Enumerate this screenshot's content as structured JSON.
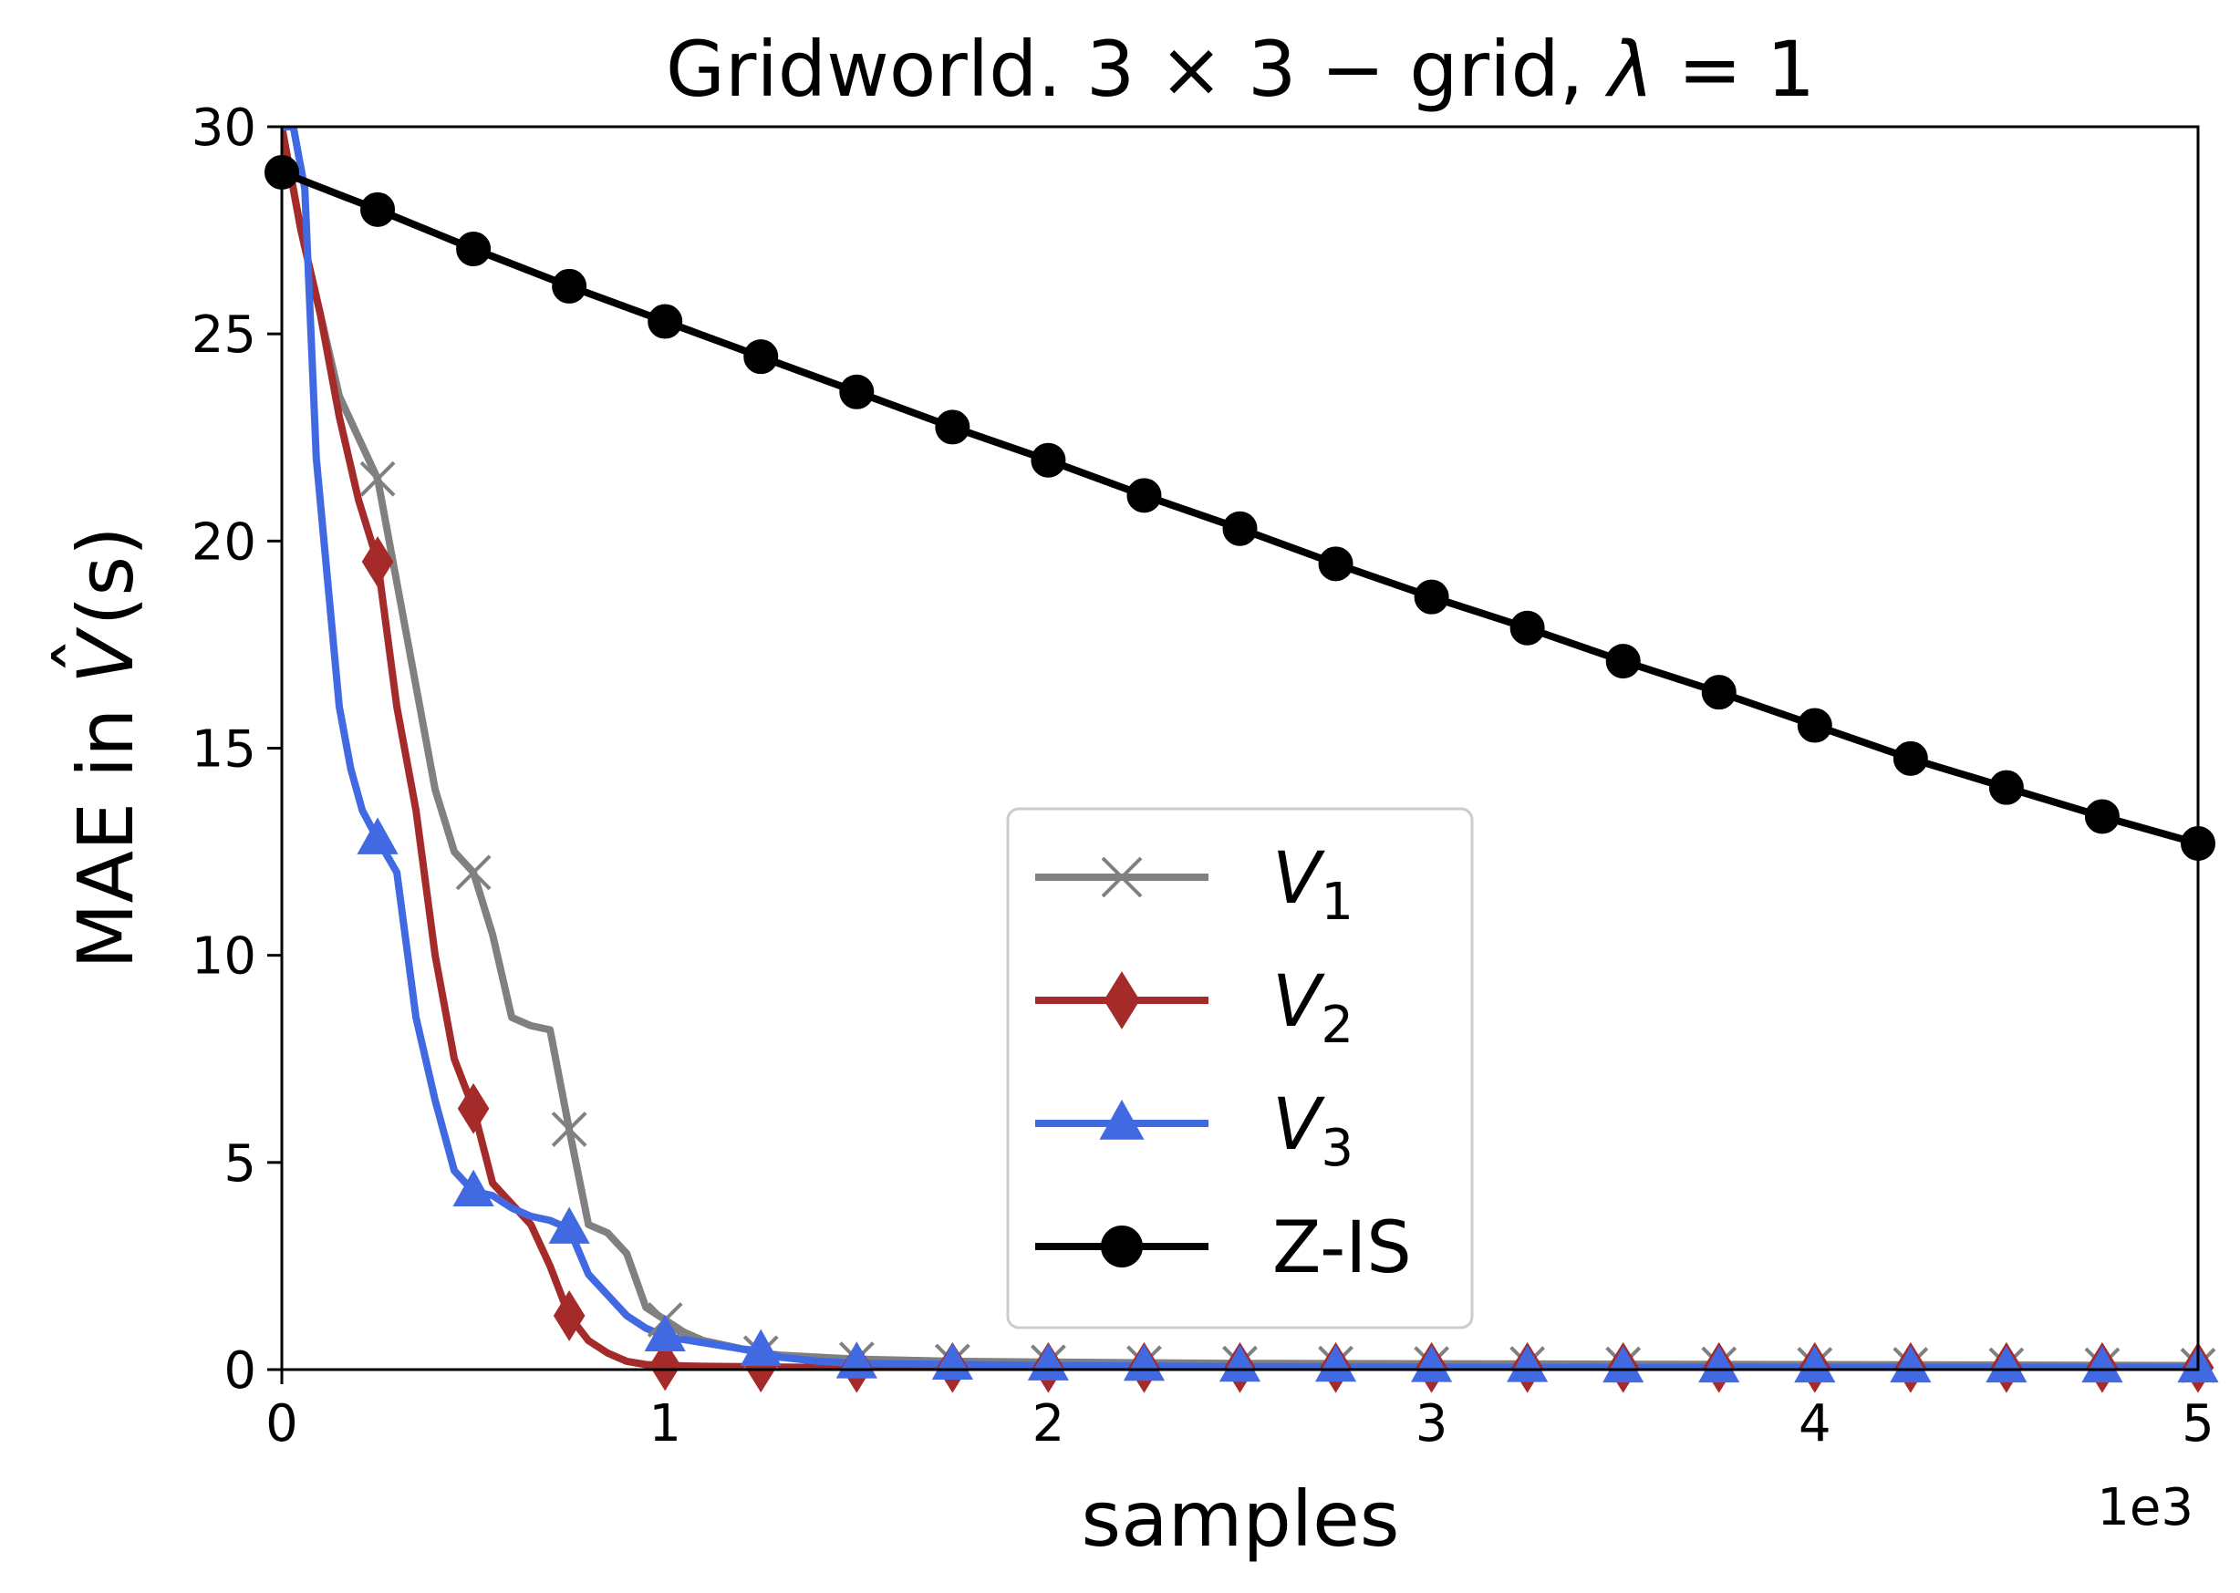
{
  "chart_data": {
    "type": "line",
    "title": "Gridworld. 3 × 3 −  grid, λ = 1",
    "title_parts": {
      "prefix": "Gridworld. 3 × 3 −  grid, ",
      "lambda": "λ",
      "suffix": " = 1"
    },
    "xlabel": "samples",
    "ylabel": "MAE in V̂(s)",
    "ylabel_parts": {
      "prefix": "MAE in ",
      "var": "V",
      "hat": "ˆ",
      "suffix": "(s)"
    },
    "x_multiplier_label": "1e3",
    "xlim": [
      0,
      5
    ],
    "ylim": [
      0,
      30
    ],
    "xticks": [
      0,
      1,
      2,
      3,
      4,
      5
    ],
    "xtick_labels": [
      "0",
      "1",
      "2",
      "3",
      "4",
      "5"
    ],
    "yticks": [
      0,
      5,
      10,
      15,
      20,
      25,
      30
    ],
    "ytick_labels": [
      "0",
      "5",
      "10",
      "15",
      "20",
      "25",
      "30"
    ],
    "grid": false,
    "legend_position": "lower-center",
    "series": [
      {
        "name": "V1",
        "label_main": "V",
        "label_sub": "1",
        "color": "#808080",
        "marker": "x",
        "x": [
          0,
          0.05,
          0.1,
          0.15,
          0.2,
          0.25,
          0.3,
          0.35,
          0.4,
          0.45,
          0.5,
          0.55,
          0.6,
          0.65,
          0.7,
          0.75,
          0.8,
          0.85,
          0.9,
          0.95,
          1.0,
          1.05,
          1.1,
          1.15,
          1.2,
          1.25,
          1.3,
          1.4,
          1.5,
          1.75,
          2.0,
          2.5,
          3.0,
          3.5,
          4.0,
          4.5,
          5.0
        ],
        "y": [
          30,
          27.5,
          25.5,
          23.5,
          22.5,
          21.5,
          19.0,
          16.5,
          14.0,
          12.5,
          12.0,
          10.5,
          8.5,
          8.3,
          8.2,
          5.8,
          3.5,
          3.3,
          2.8,
          1.5,
          1.2,
          0.9,
          0.7,
          0.6,
          0.5,
          0.4,
          0.35,
          0.3,
          0.25,
          0.2,
          0.18,
          0.15,
          0.14,
          0.13,
          0.12,
          0.11,
          0.1
        ],
        "marker_x": [
          0.25,
          0.5,
          0.75,
          1.0,
          1.25,
          1.5,
          1.75,
          2.0,
          2.25,
          2.5,
          2.75,
          3.0,
          3.25,
          3.5,
          3.75,
          4.0,
          4.25,
          4.5,
          4.75,
          5.0
        ],
        "marker_y": [
          21.5,
          12.0,
          5.8,
          1.2,
          0.4,
          0.25,
          0.2,
          0.18,
          0.16,
          0.15,
          0.15,
          0.14,
          0.14,
          0.13,
          0.13,
          0.12,
          0.12,
          0.11,
          0.11,
          0.1
        ]
      },
      {
        "name": "V2",
        "label_main": "V",
        "label_sub": "2",
        "color": "#a52a2a",
        "marker": "diamond",
        "x": [
          0,
          0.05,
          0.1,
          0.15,
          0.2,
          0.25,
          0.3,
          0.35,
          0.4,
          0.45,
          0.5,
          0.55,
          0.6,
          0.65,
          0.7,
          0.75,
          0.8,
          0.85,
          0.9,
          0.95,
          1.0,
          1.1,
          1.2,
          1.3,
          1.5,
          2.0,
          2.5,
          3.0,
          3.5,
          4.0,
          4.5,
          5.0
        ],
        "y": [
          30,
          27.5,
          25.5,
          23.0,
          21.0,
          19.5,
          16.0,
          13.5,
          10.0,
          7.5,
          6.3,
          4.5,
          4.0,
          3.5,
          2.5,
          1.3,
          0.7,
          0.4,
          0.2,
          0.12,
          0.1,
          0.08,
          0.07,
          0.06,
          0.05,
          0.05,
          0.05,
          0.05,
          0.05,
          0.05,
          0.05,
          0.05
        ],
        "marker_x": [
          0.25,
          0.5,
          0.75,
          1.0,
          1.25,
          1.5,
          1.75,
          2.0,
          2.25,
          2.5,
          2.75,
          3.0,
          3.25,
          3.5,
          3.75,
          4.0,
          4.25,
          4.5,
          4.75,
          5.0
        ],
        "marker_y": [
          19.5,
          6.3,
          1.3,
          0.1,
          0.06,
          0.05,
          0.05,
          0.05,
          0.05,
          0.05,
          0.05,
          0.05,
          0.05,
          0.05,
          0.05,
          0.05,
          0.05,
          0.05,
          0.05,
          0.05
        ]
      },
      {
        "name": "V3",
        "label_main": "V",
        "label_sub": "3",
        "color": "#4169e1",
        "marker": "triangle",
        "x": [
          0,
          0.03,
          0.06,
          0.09,
          0.12,
          0.15,
          0.18,
          0.21,
          0.25,
          0.3,
          0.35,
          0.4,
          0.45,
          0.5,
          0.55,
          0.6,
          0.65,
          0.7,
          0.75,
          0.8,
          0.85,
          0.9,
          0.95,
          1.0,
          1.1,
          1.2,
          1.25,
          1.3,
          1.4,
          1.5,
          2.0,
          2.5,
          3.0,
          3.5,
          4.0,
          4.5,
          5.0
        ],
        "y": [
          30,
          30,
          28.5,
          22.0,
          19.0,
          16.0,
          14.5,
          13.5,
          12.8,
          12.0,
          8.5,
          6.5,
          4.8,
          4.3,
          4.2,
          3.9,
          3.7,
          3.6,
          3.4,
          2.3,
          1.8,
          1.3,
          1.0,
          0.8,
          0.65,
          0.5,
          0.45,
          0.3,
          0.2,
          0.15,
          0.1,
          0.07,
          0.06,
          0.05,
          0.05,
          0.05,
          0.05
        ],
        "marker_x": [
          0.25,
          0.5,
          0.75,
          1.0,
          1.25,
          1.5,
          1.75,
          2.0,
          2.25,
          2.5,
          2.75,
          3.0,
          3.25,
          3.5,
          3.75,
          4.0,
          4.25,
          4.5,
          4.75,
          5.0
        ],
        "marker_y": [
          12.8,
          4.3,
          3.4,
          0.8,
          0.45,
          0.15,
          0.12,
          0.1,
          0.09,
          0.07,
          0.07,
          0.06,
          0.06,
          0.05,
          0.05,
          0.05,
          0.05,
          0.05,
          0.05,
          0.05
        ]
      },
      {
        "name": "Z-IS",
        "label_main": "Z-IS",
        "label_sub": "",
        "color": "#000000",
        "marker": "circle",
        "x": [
          0,
          0.25,
          0.5,
          0.75,
          1.0,
          1.25,
          1.5,
          1.75,
          2.0,
          2.25,
          2.5,
          2.75,
          3.0,
          3.25,
          3.5,
          3.75,
          4.0,
          4.25,
          4.5,
          4.75,
          5.0
        ],
        "y": [
          28.9,
          28.0,
          27.05,
          26.15,
          25.3,
          24.45,
          23.6,
          22.75,
          21.95,
          21.1,
          20.3,
          19.45,
          18.65,
          17.9,
          17.1,
          16.35,
          15.55,
          14.75,
          14.05,
          13.35,
          12.7
        ],
        "marker_x": [
          0,
          0.25,
          0.5,
          0.75,
          1.0,
          1.25,
          1.5,
          1.75,
          2.0,
          2.25,
          2.5,
          2.75,
          3.0,
          3.25,
          3.5,
          3.75,
          4.0,
          4.25,
          4.5,
          4.75,
          5.0
        ],
        "marker_y": [
          28.9,
          28.0,
          27.05,
          26.15,
          25.3,
          24.45,
          23.6,
          22.75,
          21.95,
          21.1,
          20.3,
          19.45,
          18.65,
          17.9,
          17.1,
          16.35,
          15.55,
          14.75,
          14.05,
          13.35,
          12.7
        ]
      }
    ]
  }
}
